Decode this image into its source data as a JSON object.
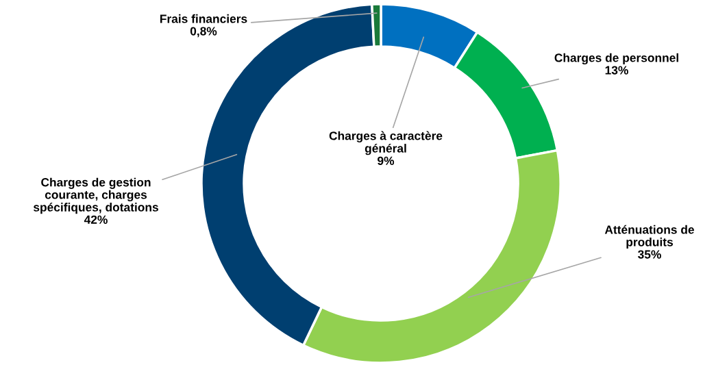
{
  "chart_data": {
    "type": "donut",
    "categories": [
      "Charges à caractère\ngénéral",
      "Charges de personnel",
      "Atténuations de\nproduits",
      "Charges de gestion\ncourante, charges\nspécifiques, dotations",
      "Frais financiers"
    ],
    "values": [
      9,
      13,
      35,
      42,
      0.8
    ],
    "value_labels": [
      "9%",
      "13%",
      "35%",
      "42%",
      "0,8%"
    ],
    "colors": [
      "#0070c0",
      "#00b050",
      "#92d050",
      "#003f70",
      "#1a7a3a"
    ],
    "legend": false
  }
}
